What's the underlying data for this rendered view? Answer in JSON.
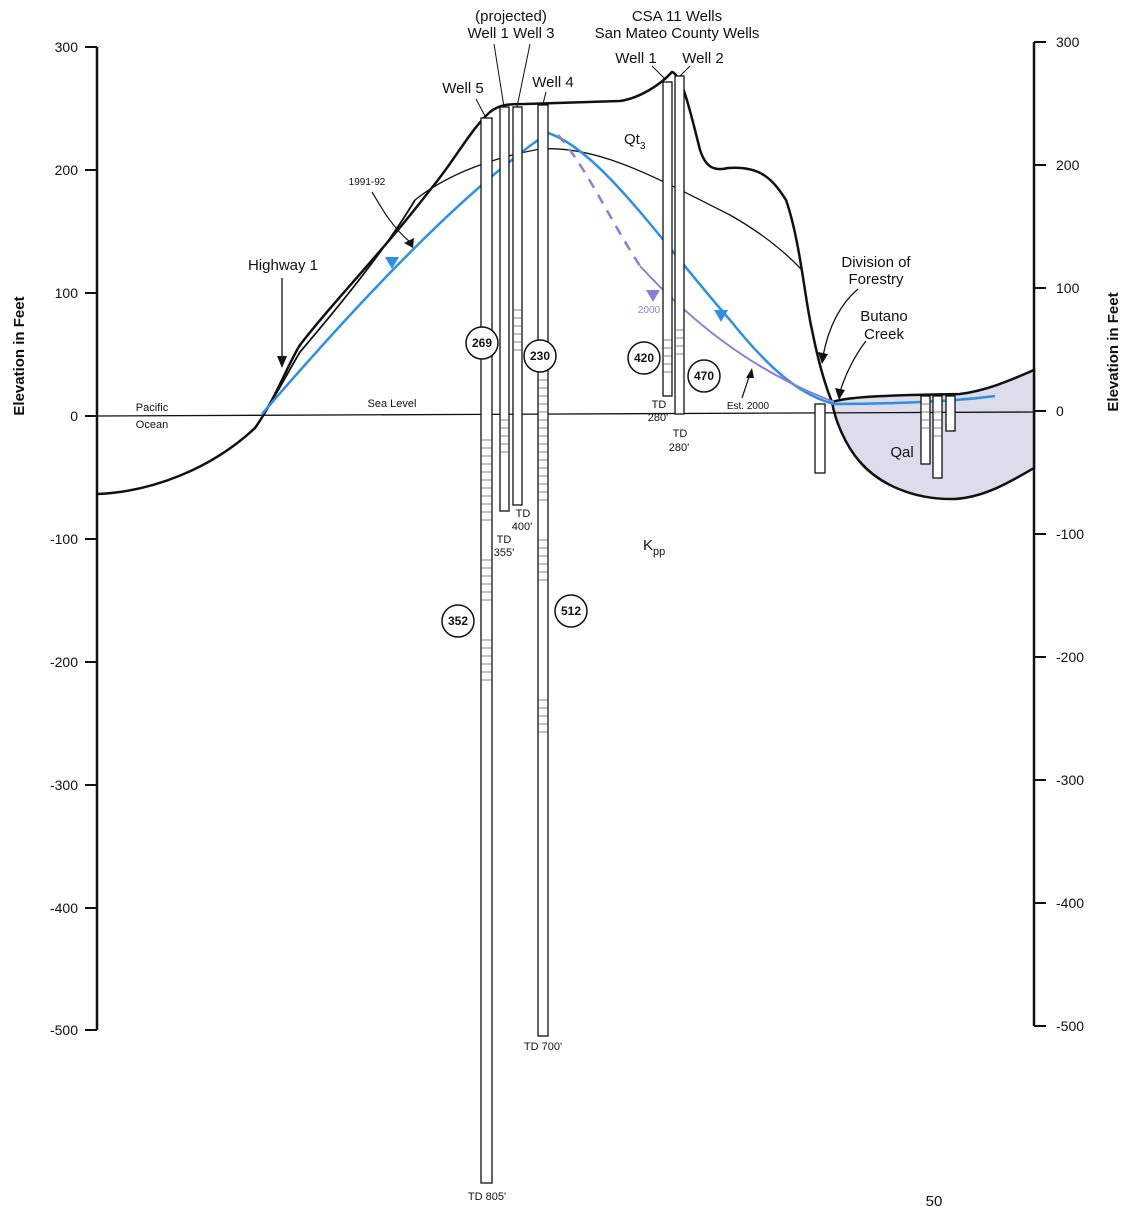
{
  "diagram": {
    "axes": {
      "left_title": "Elevation in Feet",
      "right_title": "Elevation in Feet",
      "ticks": [
        "300",
        "200",
        "100",
        "0",
        "-100",
        "-200",
        "-300",
        "-400",
        "-500"
      ]
    },
    "header": {
      "projected": "(projected)",
      "well1_well3": "Well 1 Well 3",
      "csa": "CSA 11 Wells",
      "smc": "San Mateo County Wells"
    },
    "wells": {
      "well5": "Well 5",
      "well4": "Well 4",
      "well1": "Well 1",
      "well2": "Well 2"
    },
    "labels": {
      "highway": "Highway 1",
      "pacific": "Pacific",
      "ocean": "Ocean",
      "sea_level": "Sea Level",
      "year_1991": "1991-92",
      "year_2000": "2000",
      "est_2000": "Est. 2000",
      "division": "Division of",
      "forestry": "Forestry",
      "butano": "Butano",
      "creek": "Creek",
      "qt": "Qt",
      "qt_sub": "3",
      "qal": "Qal",
      "k": "K",
      "k_sub": "pp",
      "scale_hint": "50"
    },
    "total_depths": {
      "td": "TD",
      "td_355": "355'",
      "td_400": "400'",
      "td_280a": "280'",
      "td_280b": "280'",
      "td_805": "TD 805'",
      "td_700": "TD 700'"
    },
    "circled_values": [
      "269",
      "230",
      "420",
      "470",
      "352",
      "512"
    ],
    "colors": {
      "water_level_1991": "#2f8fe0",
      "water_level_2000": "#8a7fd8",
      "alluvium_fill": "#dcdcea",
      "line": "#111111"
    }
  }
}
